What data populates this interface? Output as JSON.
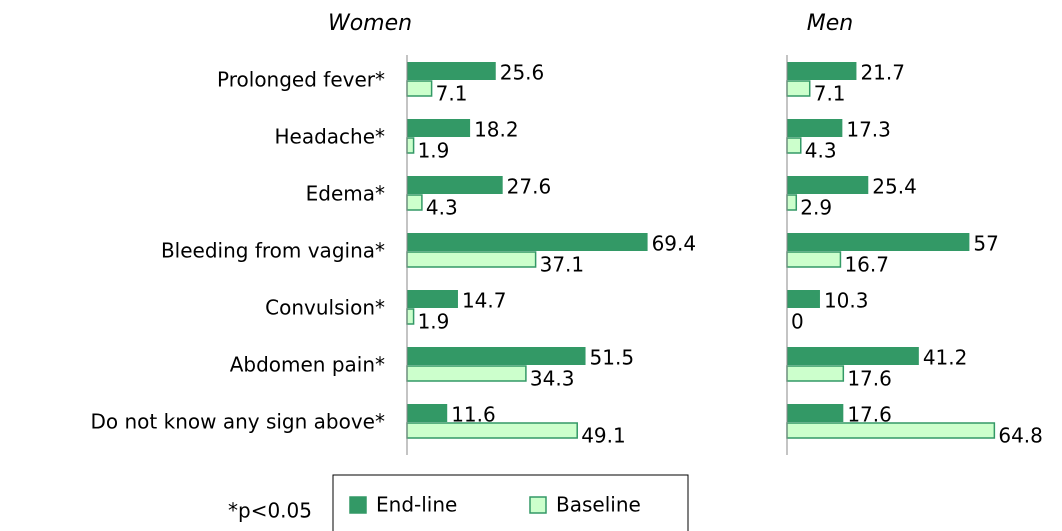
{
  "chart_data": [
    {
      "type": "bar",
      "orientation": "horizontal",
      "title": "Women",
      "categories": [
        "Prolonged fever*",
        "Headache*",
        "Edema*",
        "Bleeding from vagina*",
        "Convulsion*",
        "Abdomen pain*",
        "Do not know any sign above*"
      ],
      "series": [
        {
          "name": "End-line",
          "color": "#339966",
          "values": [
            25.6,
            18.2,
            27.6,
            69.4,
            14.7,
            51.5,
            11.6
          ]
        },
        {
          "name": "Baseline",
          "color": "#ccffcc",
          "values": [
            7.1,
            1.9,
            4.3,
            37.1,
            1.9,
            34.3,
            49.1
          ]
        }
      ],
      "xlim": [
        0,
        75
      ],
      "annotation": "*p<0.05"
    },
    {
      "type": "bar",
      "orientation": "horizontal",
      "title": "Men",
      "series": [
        {
          "color": "#339966",
          "values": [
            21.7,
            17.3,
            25.4,
            57,
            10.3,
            41.2,
            17.6
          ]
        },
        {
          "color": "#ccffcc",
          "values": [
            7.1,
            4.3,
            2.9,
            16.7,
            0,
            17.6,
            64.8
          ]
        }
      ],
      "xlim": [
        0,
        75
      ]
    }
  ]
}
